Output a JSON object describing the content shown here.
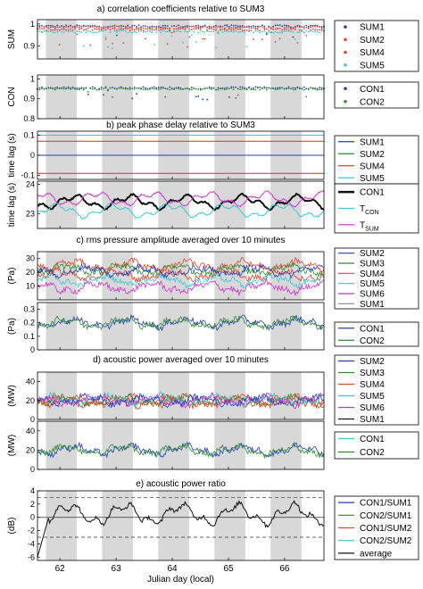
{
  "figure": {
    "xlabel": "Julian day (local)",
    "colors": {
      "night": "#d8d8d8",
      "blue": "#1f3fb8",
      "green": "#2f8a2f",
      "red": "#e0452a",
      "cyan": "#35c8d8",
      "magenta": "#d12fd1",
      "black": "#111111",
      "purple": "#8b2f9f",
      "gray": "#888888"
    }
  },
  "chart_data": [
    {
      "id": "a_sum",
      "type": "scatter",
      "title": "a) correlation coefficients relative to SUM3",
      "ylabel": "SUM",
      "ylim": [
        0.84,
        1.02
      ],
      "yticks": [
        0.9,
        1
      ],
      "xlim": [
        61.6,
        66.7
      ],
      "series": [
        {
          "name": "SUM1",
          "level": 0.99
        },
        {
          "name": "SUM2",
          "level": 0.985
        },
        {
          "name": "SUM4",
          "level": 0.975
        },
        {
          "name": "SUM5",
          "level": 0.965
        }
      ]
    },
    {
      "id": "a_con",
      "type": "scatter",
      "ylabel": "CON",
      "ylim": [
        0.8,
        1.02
      ],
      "yticks": [
        0.8,
        0.9,
        1
      ],
      "xlim": [
        61.6,
        66.7
      ],
      "series": [
        {
          "name": "CON1",
          "level": 0.955
        },
        {
          "name": "CON2",
          "level": 0.95
        }
      ]
    },
    {
      "id": "b_sum",
      "type": "line",
      "title": "b) peak phase delay relative to SUM3",
      "ylabel": "time lag (s)",
      "ylim": [
        -0.12,
        0.12
      ],
      "yticks": [
        -0.1,
        0,
        0.1
      ],
      "xlim": [
        61.6,
        66.7
      ],
      "series": [
        {
          "name": "SUM1",
          "values": [
            0.0
          ]
        },
        {
          "name": "SUM2",
          "values": [
            -0.09
          ]
        },
        {
          "name": "SUM4",
          "values": [
            0.07
          ]
        },
        {
          "name": "SUM5",
          "values": [
            0.1
          ]
        }
      ]
    },
    {
      "id": "b_con",
      "type": "line",
      "ylabel": "time lag (s)",
      "ylim": [
        22.5,
        24.1
      ],
      "yticks": [
        23,
        24
      ],
      "xlim": [
        61.6,
        66.7
      ],
      "series": [
        {
          "name": "CON1",
          "base": 23.4
        },
        {
          "name": "T_CON",
          "base": 23.1
        },
        {
          "name": "T_SUM",
          "base": 23.5
        }
      ]
    },
    {
      "id": "c_sum",
      "type": "line",
      "title": "c) rms pressure amplitude averaged over 10 minutes",
      "ylabel": "(Pa)",
      "ylim": [
        0,
        35
      ],
      "yticks": [
        10,
        20,
        30
      ],
      "xlim": [
        61.6,
        66.7
      ],
      "series": [
        {
          "name": "SUM2",
          "base": 25
        },
        {
          "name": "SUM3",
          "base": 22
        },
        {
          "name": "SUM4",
          "base": 18
        },
        {
          "name": "SUM5",
          "base": 14
        },
        {
          "name": "SUM6",
          "base": 9
        },
        {
          "name": "SUM1",
          "base": 21
        }
      ]
    },
    {
      "id": "c_con",
      "type": "line",
      "ylabel": "(Pa)",
      "ylim": [
        0,
        0.35
      ],
      "yticks": [
        0,
        0.1,
        0.2,
        0.3
      ],
      "xlim": [
        61.6,
        66.7
      ],
      "series": [
        {
          "name": "CON1",
          "base": 0.2
        },
        {
          "name": "CON2",
          "base": 0.2
        }
      ]
    },
    {
      "id": "d_sum",
      "type": "line",
      "title": "d) acoustic power averaged over 10 minutes",
      "ylabel": "(MW)",
      "ylim": [
        0,
        50
      ],
      "yticks": [
        0,
        20,
        40
      ],
      "xlim": [
        61.6,
        66.7
      ],
      "series": [
        {
          "name": "SUM2",
          "base": 20
        },
        {
          "name": "SUM3",
          "base": 20
        },
        {
          "name": "SUM4",
          "base": 19
        },
        {
          "name": "SUM5",
          "base": 21
        },
        {
          "name": "SUM6",
          "base": 20
        },
        {
          "name": "SUM1",
          "base": 20
        }
      ]
    },
    {
      "id": "d_con",
      "type": "line",
      "ylabel": "(MW)",
      "ylim": [
        0,
        50
      ],
      "yticks": [
        0,
        20,
        40
      ],
      "xlim": [
        61.6,
        66.7
      ],
      "series": [
        {
          "name": "CON1",
          "base": 20
        },
        {
          "name": "CON2",
          "base": 20
        }
      ]
    },
    {
      "id": "e",
      "type": "line",
      "title": "e) acoustic power ratio",
      "ylabel": "(dB)",
      "ylim": [
        -6.5,
        4
      ],
      "yticks": [
        -6,
        -4,
        -2,
        0,
        2,
        4
      ],
      "xlim": [
        61.6,
        66.7
      ],
      "xticks": [
        62,
        63,
        64,
        65,
        66
      ],
      "xticklabels": [
        "62",
        "63",
        "64",
        "65",
        "66"
      ],
      "reference_lines": [
        3,
        0,
        -3
      ],
      "series": [
        {
          "name": "CON1/SUM1"
        },
        {
          "name": "CON2/SUM1"
        },
        {
          "name": "CON1/SUM2"
        },
        {
          "name": "CON2/SUM2"
        },
        {
          "name": "average"
        }
      ]
    }
  ],
  "night_bands": [
    [
      61.75,
      62.3
    ],
    [
      62.75,
      63.3
    ],
    [
      63.75,
      64.3
    ],
    [
      64.75,
      65.3
    ],
    [
      65.75,
      66.3
    ]
  ],
  "legends": [
    {
      "panel": "a_sum",
      "items": [
        {
          "label": "SUM1",
          "color": "#1f3fb8",
          "marker": "dot"
        },
        {
          "label": "SUM2",
          "color": "#e0452a",
          "marker": "dot"
        },
        {
          "label": "SUM4",
          "color": "#e0452a",
          "marker": "dot"
        },
        {
          "label": "SUM5",
          "color": "#35c8d8",
          "marker": "dot"
        }
      ]
    },
    {
      "panel": "a_con",
      "items": [
        {
          "label": "CON1",
          "color": "#1f3fb8",
          "marker": "dot"
        },
        {
          "label": "CON2",
          "color": "#2f8a2f",
          "marker": "dot"
        }
      ]
    },
    {
      "panel": "b_sum",
      "items": [
        {
          "label": "SUM1",
          "color": "#1f3fb8"
        },
        {
          "label": "SUM2",
          "color": "#2f8a2f"
        },
        {
          "label": "SUM4",
          "color": "#e0452a"
        },
        {
          "label": "SUM5",
          "color": "#35c8d8"
        }
      ]
    },
    {
      "panel": "b_con",
      "items": [
        {
          "label": "CON1",
          "color": "#111111",
          "thick": true
        },
        {
          "label": "T",
          "sub": "CON",
          "color": "#35c8d8"
        },
        {
          "label": "T",
          "sub": "SUM",
          "color": "#d12fd1"
        }
      ]
    },
    {
      "panel": "c_sum",
      "items": [
        {
          "label": "SUM2",
          "color": "#1f3fb8"
        },
        {
          "label": "SUM3",
          "color": "#2f8a2f"
        },
        {
          "label": "SUM4",
          "color": "#e0452a"
        },
        {
          "label": "SUM5",
          "color": "#35c8d8"
        },
        {
          "label": "SUM6",
          "color": "#d12fd1"
        },
        {
          "label": "SUM1",
          "color": "#888888"
        }
      ]
    },
    {
      "panel": "c_con",
      "items": [
        {
          "label": "CON1",
          "color": "#1f3fb8"
        },
        {
          "label": "CON2",
          "color": "#2f8a2f"
        }
      ]
    },
    {
      "panel": "d_sum",
      "items": [
        {
          "label": "SUM2",
          "color": "#1f3fb8"
        },
        {
          "label": "SUM3",
          "color": "#2f8a2f"
        },
        {
          "label": "SUM4",
          "color": "#e0452a"
        },
        {
          "label": "SUM5",
          "color": "#35c8d8"
        },
        {
          "label": "SUM6",
          "color": "#d12fd1"
        },
        {
          "label": "SUM1",
          "color": "#111111"
        }
      ]
    },
    {
      "panel": "d_con",
      "items": [
        {
          "label": "CON1",
          "color": "#35c8d8"
        },
        {
          "label": "CON2",
          "color": "#2f8a2f"
        }
      ]
    },
    {
      "panel": "e",
      "items": [
        {
          "label": "CON1/SUM1",
          "color": "#1f3fb8"
        },
        {
          "label": "CON2/SUM1",
          "color": "#2f8a2f"
        },
        {
          "label": "CON1/SUM2",
          "color": "#e0452a"
        },
        {
          "label": "CON2/SUM2",
          "color": "#35c8d8"
        },
        {
          "label": "average",
          "color": "#111111"
        }
      ]
    }
  ]
}
